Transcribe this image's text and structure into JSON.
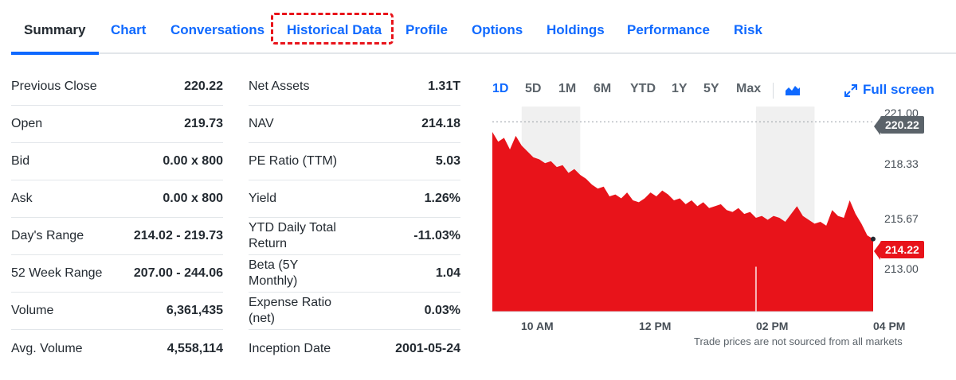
{
  "tabs": [
    {
      "label": "Summary",
      "active": true
    },
    {
      "label": "Chart",
      "active": false
    },
    {
      "label": "Conversations",
      "active": false
    },
    {
      "label": "Historical Data",
      "active": false,
      "highlighted": true
    },
    {
      "label": "Profile",
      "active": false
    },
    {
      "label": "Options",
      "active": false
    },
    {
      "label": "Holdings",
      "active": false
    },
    {
      "label": "Performance",
      "active": false
    },
    {
      "label": "Risk",
      "active": false
    }
  ],
  "stats_left": [
    {
      "label": "Previous Close",
      "value": "220.22"
    },
    {
      "label": "Open",
      "value": "219.73"
    },
    {
      "label": "Bid",
      "value": "0.00 x 800"
    },
    {
      "label": "Ask",
      "value": "0.00 x 800"
    },
    {
      "label": "Day's Range",
      "value": "214.02 - 219.73"
    },
    {
      "label": "52 Week Range",
      "value": "207.00 - 244.06"
    },
    {
      "label": "Volume",
      "value": "6,361,435"
    },
    {
      "label": "Avg. Volume",
      "value": "4,558,114"
    }
  ],
  "stats_right": [
    {
      "label": "Net Assets",
      "value": "1.31T"
    },
    {
      "label": "NAV",
      "value": "214.18"
    },
    {
      "label": "PE Ratio (TTM)",
      "value": "5.03"
    },
    {
      "label": "Yield",
      "value": "1.26%"
    },
    {
      "label": "YTD Daily Total Return",
      "value": "-11.03%"
    },
    {
      "label": "Beta (5Y Monthly)",
      "value": "1.04"
    },
    {
      "label": "Expense Ratio (net)",
      "value": "0.03%"
    },
    {
      "label": "Inception Date",
      "value": "2001-05-24"
    }
  ],
  "chart": {
    "ranges": [
      "1D",
      "5D",
      "1M",
      "6M",
      "YTD",
      "1Y",
      "5Y",
      "Max"
    ],
    "active_range": "1D",
    "fullscreen_label": "Full screen",
    "disclaimer": "Trade prices are not sourced from all markets",
    "colors": {
      "fill": "#e8131a",
      "shade": "#f0f0f0",
      "accent": "#0f69ff"
    }
  },
  "chart_data": {
    "type": "area",
    "title": "",
    "previous_close": 220.22,
    "current_price": 214.22,
    "previous_close_label": "220.22",
    "current_price_label": "214.22",
    "y_ticks": [
      "221.00",
      "218.33",
      "215.67",
      "213.00"
    ],
    "ylim": [
      210.5,
      221.0
    ],
    "x_ticks": [
      "10 AM",
      "12 PM",
      "02 PM",
      "04 PM"
    ],
    "x_tick_hours": [
      10,
      12,
      14,
      16
    ],
    "shaded_hours": [
      [
        10,
        11
      ],
      [
        14,
        15
      ]
    ],
    "x_range": [
      9.5,
      16.0
    ],
    "series": [
      {
        "name": "Price",
        "x": [
          9.5,
          9.6,
          9.7,
          9.8,
          9.9,
          10.0,
          10.1,
          10.2,
          10.3,
          10.4,
          10.5,
          10.6,
          10.7,
          10.8,
          10.9,
          11.0,
          11.1,
          11.2,
          11.3,
          11.4,
          11.5,
          11.6,
          11.7,
          11.8,
          11.9,
          12.0,
          12.1,
          12.2,
          12.3,
          12.4,
          12.5,
          12.6,
          12.7,
          12.8,
          12.9,
          13.0,
          13.1,
          13.2,
          13.3,
          13.4,
          13.5,
          13.6,
          13.7,
          13.8,
          13.9,
          14.0,
          14.1,
          14.2,
          14.3,
          14.4,
          14.5,
          14.6,
          14.7,
          14.8,
          14.9,
          15.0,
          15.1,
          15.2,
          15.3,
          15.4,
          15.5,
          15.6,
          15.7,
          15.8,
          15.9,
          16.0
        ],
        "values": [
          219.7,
          219.2,
          219.4,
          218.8,
          219.5,
          219.0,
          218.7,
          218.4,
          218.3,
          218.1,
          218.2,
          217.9,
          218.0,
          217.6,
          217.8,
          217.5,
          217.3,
          217.0,
          216.8,
          216.9,
          216.4,
          216.5,
          216.3,
          216.6,
          216.2,
          216.1,
          216.3,
          216.6,
          216.4,
          216.7,
          216.5,
          216.2,
          216.3,
          216.0,
          216.2,
          215.9,
          216.1,
          215.8,
          215.9,
          216.0,
          215.7,
          215.6,
          215.8,
          215.5,
          215.6,
          215.3,
          215.4,
          215.2,
          215.4,
          215.3,
          215.1,
          215.5,
          215.9,
          215.4,
          215.2,
          215.0,
          215.1,
          214.9,
          215.7,
          215.4,
          215.3,
          216.2,
          215.5,
          215.0,
          214.4,
          214.22
        ]
      }
    ]
  }
}
